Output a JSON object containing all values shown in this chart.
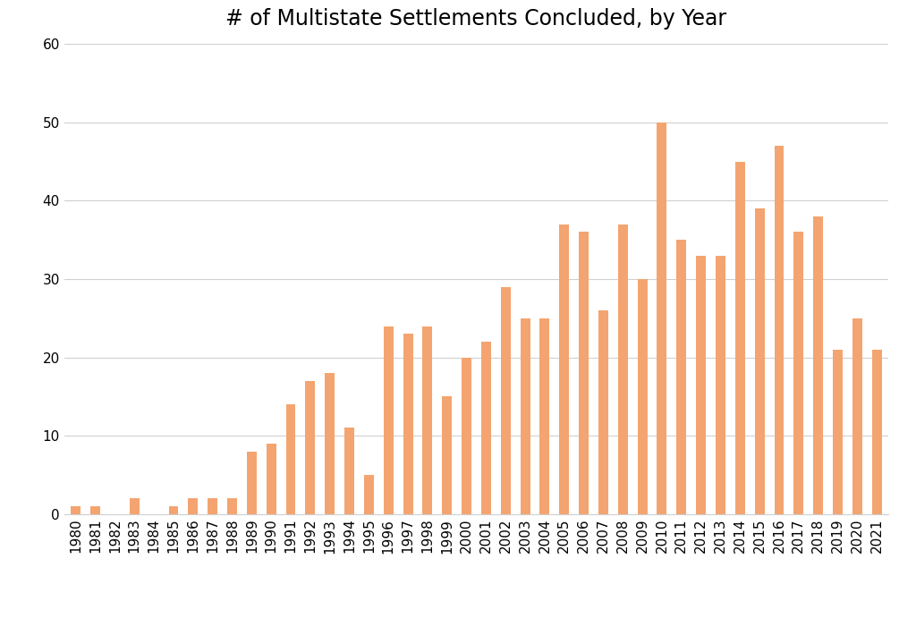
{
  "title": "# of Multistate Settlements Concluded, by Year",
  "years": [
    1980,
    1981,
    1982,
    1983,
    1984,
    1985,
    1986,
    1987,
    1988,
    1989,
    1990,
    1991,
    1992,
    1993,
    1994,
    1995,
    1996,
    1997,
    1998,
    1999,
    2000,
    2001,
    2002,
    2003,
    2004,
    2005,
    2006,
    2007,
    2008,
    2009,
    2010,
    2011,
    2012,
    2013,
    2014,
    2015,
    2016,
    2017,
    2018,
    2019,
    2020,
    2021
  ],
  "values": [
    1,
    1,
    0,
    2,
    0,
    1,
    2,
    2,
    2,
    8,
    9,
    14,
    17,
    18,
    11,
    5,
    24,
    23,
    24,
    15,
    20,
    22,
    29,
    25,
    25,
    37,
    36,
    26,
    37,
    30,
    50,
    35,
    33,
    33,
    45,
    39,
    47,
    36,
    38,
    21,
    25,
    21
  ],
  "bar_color": "#F4A470",
  "background_color": "#ffffff",
  "ylim": [
    0,
    60
  ],
  "yticks": [
    0,
    10,
    20,
    30,
    40,
    50,
    60
  ],
  "title_fontsize": 17,
  "tick_fontsize": 11,
  "grid_color": "#d0d0d0",
  "bar_width": 0.5
}
